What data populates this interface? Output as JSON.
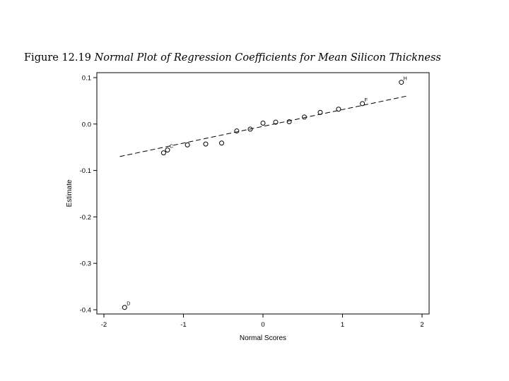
{
  "caption": {
    "figure_number": "Figure 12.19",
    "title": "Normal Plot of Regression Coefficients for Mean Silicon Thickness"
  },
  "chart_data": {
    "type": "scatter",
    "xlabel": "Normal Scores",
    "ylabel": "Estimate",
    "xlim": [
      -2.0,
      2.0
    ],
    "ylim": [
      -0.4,
      0.1
    ],
    "x_ticks": [
      -2,
      -1,
      0,
      1,
      2
    ],
    "y_ticks": [
      -0.4,
      -0.3,
      -0.2,
      -0.1,
      0.0,
      0.1
    ],
    "x_tick_labels": [
      "-2",
      "-1",
      "0",
      "1",
      "2"
    ],
    "y_tick_labels": [
      "-0.4",
      "-0.3",
      "-0.2",
      "-0.1",
      "0.0",
      "0.1"
    ],
    "grid": false,
    "points": [
      {
        "x": -1.74,
        "y": -0.395,
        "label": "D"
      },
      {
        "x": -1.25,
        "y": -0.062,
        "label": ""
      },
      {
        "x": -1.2,
        "y": -0.056,
        "label": "C"
      },
      {
        "x": -0.95,
        "y": -0.045,
        "label": ""
      },
      {
        "x": -0.72,
        "y": -0.043,
        "label": ""
      },
      {
        "x": -0.52,
        "y": -0.041,
        "label": ""
      },
      {
        "x": -0.33,
        "y": -0.015,
        "label": ""
      },
      {
        "x": -0.16,
        "y": -0.011,
        "label": ""
      },
      {
        "x": 0.0,
        "y": 0.002,
        "label": ""
      },
      {
        "x": 0.16,
        "y": 0.004,
        "label": ""
      },
      {
        "x": 0.33,
        "y": 0.005,
        "label": ""
      },
      {
        "x": 0.52,
        "y": 0.015,
        "label": ""
      },
      {
        "x": 0.72,
        "y": 0.025,
        "label": ""
      },
      {
        "x": 0.95,
        "y": 0.032,
        "label": ""
      },
      {
        "x": 1.25,
        "y": 0.044,
        "label": "F"
      },
      {
        "x": 1.74,
        "y": 0.09,
        "label": "H"
      }
    ],
    "reference_line": {
      "x": [
        -1.8,
        1.8
      ],
      "y": [
        -0.07,
        0.06
      ],
      "style": "dashed"
    }
  }
}
